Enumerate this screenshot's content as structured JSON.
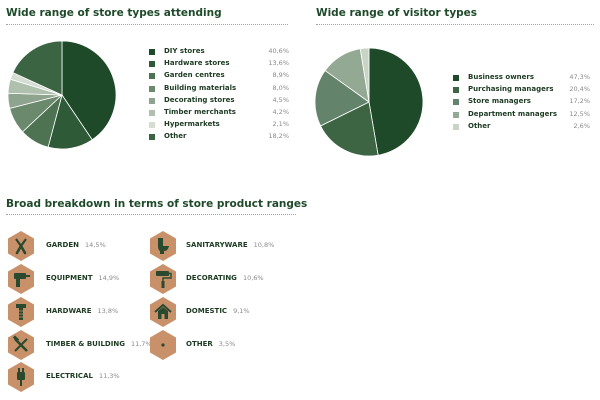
{
  "sections": {
    "store_types_title": "Wide range of store types attending",
    "visitor_types_title": "Wide range of visitor types",
    "product_ranges_title": "Broad breakdown in terms of store product ranges"
  },
  "colors": {
    "accent_dark": "#1e4a28",
    "hex_fill": "#c8916a",
    "hex_icon": "#2a4a2f"
  },
  "chart_data": [
    {
      "type": "pie",
      "title": "Wide range of store types attending",
      "slices": [
        {
          "label": "DIY stores",
          "value": 40.6,
          "display": "40,6%",
          "color": "#1f4a29"
        },
        {
          "label": "Hardware stores",
          "value": 13.6,
          "display": "13,6%",
          "color": "#2e5a37"
        },
        {
          "label": "Garden centres",
          "value": 8.9,
          "display": "8,9%",
          "color": "#4d7352"
        },
        {
          "label": "Building materials",
          "value": 8.0,
          "display": "8,0%",
          "color": "#6b8a6d"
        },
        {
          "label": "Decorating stores",
          "value": 4.5,
          "display": "4,5%",
          "color": "#8ea48e"
        },
        {
          "label": "Timber merchants",
          "value": 4.2,
          "display": "4,2%",
          "color": "#b0c0ae"
        },
        {
          "label": "Hypermarkets",
          "value": 2.1,
          "display": "2,1%",
          "color": "#d6ded4"
        },
        {
          "label": "Other",
          "value": 18.2,
          "display": "18,2%",
          "color": "#3a6442"
        }
      ],
      "legend_position": "right"
    },
    {
      "type": "pie",
      "title": "Wide range of visitor types",
      "slices": [
        {
          "label": "Business owners",
          "value": 47.3,
          "display": "47,3%",
          "color": "#1f4a29"
        },
        {
          "label": "Purchasing managers",
          "value": 20.4,
          "display": "20,4%",
          "color": "#3d6544"
        },
        {
          "label": "Store managers",
          "value": 17.2,
          "display": "17,2%",
          "color": "#63836a"
        },
        {
          "label": "Department managers",
          "value": 12.5,
          "display": "12,5%",
          "color": "#93a993"
        },
        {
          "label": "Other",
          "value": 2.6,
          "display": "2,6%",
          "color": "#c9d4c7"
        }
      ],
      "legend_position": "right"
    }
  ],
  "product_ranges": [
    {
      "label": "GARDEN",
      "value": "14,5%",
      "icon": "pruning-shears-icon"
    },
    {
      "label": "EQUIPMENT",
      "value": "14,9%",
      "icon": "power-drill-icon"
    },
    {
      "label": "HARDWARE",
      "value": "13,8%",
      "icon": "bolt-screw-icon"
    },
    {
      "label": "TIMBER & BUILDING",
      "value": "11,7%",
      "icon": "hammer-saw-icon"
    },
    {
      "label": "ELECTRICAL",
      "value": "11,3%",
      "icon": "electric-plug-icon"
    },
    {
      "label": "SANITARYWARE",
      "value": "10,8%",
      "icon": "toilet-icon"
    },
    {
      "label": "DECORATING",
      "value": "10,6%",
      "icon": "paint-roller-icon"
    },
    {
      "label": "DOMESTIC",
      "value": "9,1%",
      "icon": "house-icon"
    },
    {
      "label": "OTHER",
      "value": "3,5%",
      "icon": "dot-icon"
    }
  ]
}
